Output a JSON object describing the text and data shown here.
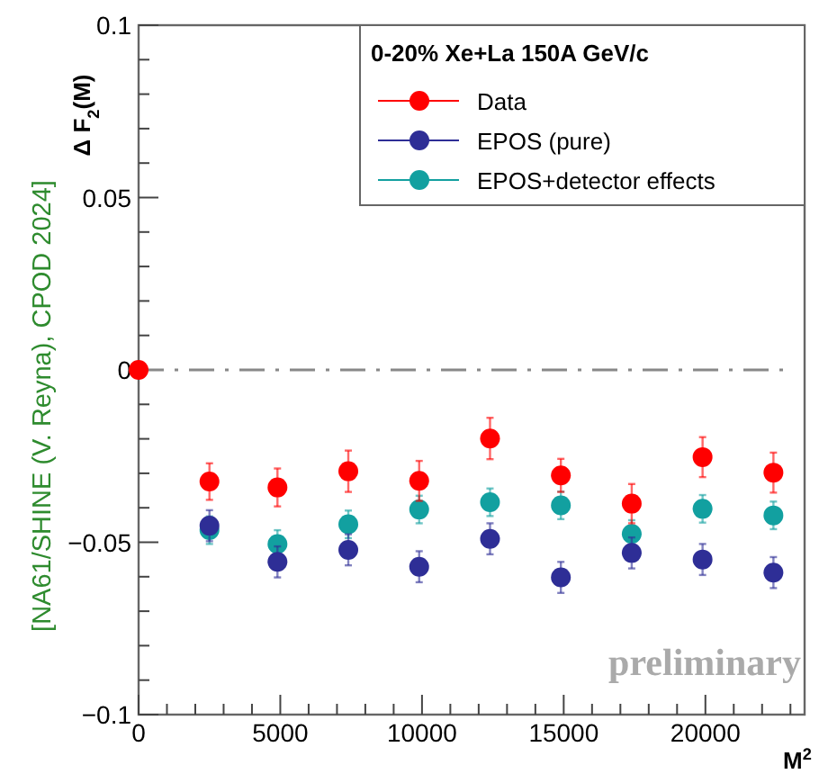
{
  "chart_data": {
    "type": "scatter",
    "legend_title": "0-20% Xe+La 150A GeV/c",
    "xlabel": "M$^{2}$",
    "ylabel": "Δ F$_{2}$(M)",
    "annotations": [
      "[NA61/SHINE (V. Reyna), CPOD 2024]",
      "preliminary"
    ],
    "xlim": [
      0,
      23500
    ],
    "ylim": [
      -0.1,
      0.1
    ],
    "xticks": [
      0,
      {
        "value": 1000,
        "label": null
      },
      {
        "value": 2000,
        "label": null
      },
      {
        "value": 3000,
        "label": null
      },
      {
        "value": 4000,
        "label": null
      },
      5000,
      {
        "value": 6000,
        "label": null
      },
      {
        "value": 7000,
        "label": null
      },
      {
        "value": 8000,
        "label": null
      },
      {
        "value": 9000,
        "label": null
      },
      10000,
      {
        "value": 11000,
        "label": null
      },
      {
        "value": 12000,
        "label": null
      },
      {
        "value": 13000,
        "label": null
      },
      {
        "value": 14000,
        "label": null
      },
      15000,
      {
        "value": 16000,
        "label": null
      },
      {
        "value": 17000,
        "label": null
      },
      {
        "value": 18000,
        "label": null
      },
      {
        "value": 19000,
        "label": null
      },
      20000,
      {
        "value": 21000,
        "label": null
      },
      {
        "value": 22000,
        "label": null
      },
      {
        "value": 23000,
        "label": null
      }
    ],
    "yticks": [
      {
        "value": -0.1,
        "label": "−0.1"
      },
      {
        "value": -0.09,
        "label": null
      },
      {
        "value": -0.08,
        "label": null
      },
      {
        "value": -0.07,
        "label": null
      },
      {
        "value": -0.06,
        "label": null
      },
      {
        "value": -0.05,
        "label": "−0.05"
      },
      {
        "value": -0.04,
        "label": null
      },
      {
        "value": -0.03,
        "label": null
      },
      {
        "value": -0.02,
        "label": null
      },
      {
        "value": -0.01,
        "label": null
      },
      0,
      {
        "value": 0.01,
        "label": null
      },
      {
        "value": 0.02,
        "label": null
      },
      {
        "value": 0.03,
        "label": null
      },
      {
        "value": 0.04,
        "label": null
      },
      0.05,
      {
        "value": 0.06,
        "label": null
      },
      {
        "value": 0.07,
        "label": null
      },
      {
        "value": 0.08,
        "label": null
      },
      {
        "value": 0.09,
        "label": null
      },
      0.1
    ],
    "grid": false,
    "legend": "top right",
    "marker": "circle",
    "ref_lines": [
      {
        "axis": "y",
        "value": 0,
        "color": "#888888",
        "line_style": "dashdot"
      }
    ],
    "series": [
      {
        "name": "Data",
        "color": "#ff0000",
        "x": [
          0,
          2500,
          4900,
          7400,
          9900,
          12400,
          14900,
          17400,
          19900,
          22400
        ],
        "values": [
          0,
          -0.0324,
          -0.0341,
          -0.0294,
          -0.0322,
          -0.0199,
          -0.0306,
          -0.0388,
          -0.0253,
          -0.0298
        ],
        "errors": [
          null,
          0.0053,
          0.0055,
          0.006,
          0.0058,
          0.006,
          0.0048,
          0.0057,
          0.0058,
          0.0058
        ]
      },
      {
        "name": "EPOS (pure)",
        "color": "#2e2e96",
        "x": [
          2500,
          4900,
          7400,
          9900,
          12400,
          14900,
          17400,
          19900,
          22400
        ],
        "values": [
          -0.0452,
          -0.0557,
          -0.0522,
          -0.0571,
          -0.049,
          -0.0602,
          -0.0531,
          -0.055,
          -0.0588
        ],
        "errors": [
          0.0045,
          0.0045,
          0.0045,
          0.0045,
          0.0045,
          0.0045,
          0.0045,
          0.0045,
          0.0045
        ]
      },
      {
        "name": "EPOS+detector effects",
        "color": "#12a0a0",
        "x": [
          2500,
          4900,
          7400,
          9900,
          12400,
          14900,
          17400,
          19900,
          22400
        ],
        "values": [
          -0.0465,
          -0.0505,
          -0.0448,
          -0.0405,
          -0.0384,
          -0.0393,
          -0.0476,
          -0.0403,
          -0.0422
        ],
        "errors": [
          0.004,
          0.004,
          0.004,
          0.004,
          0.004,
          0.004,
          0.004,
          0.004,
          0.004
        ]
      }
    ]
  }
}
